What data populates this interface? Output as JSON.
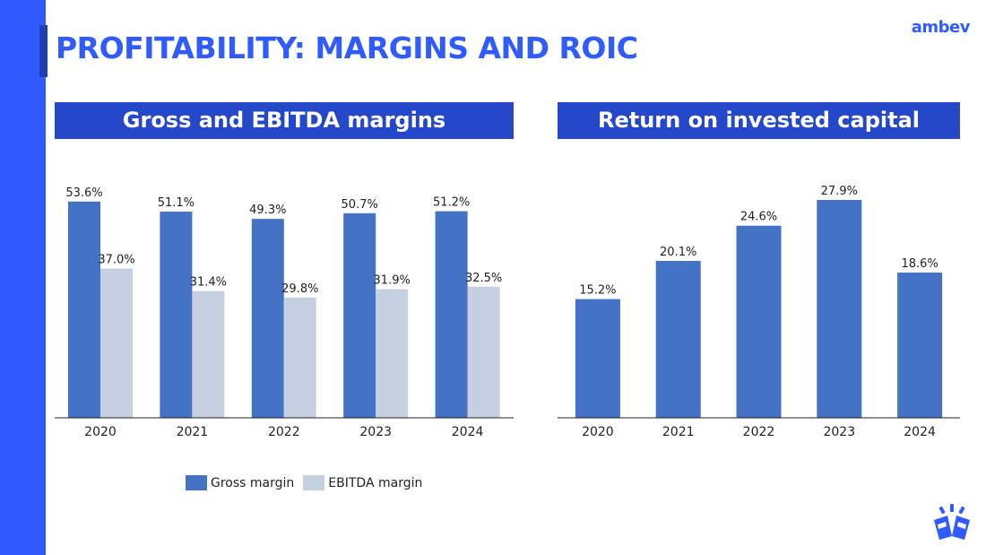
{
  "header": {
    "title": "PROFITABILITY: MARGINS AND ROIC",
    "brand": "ambev"
  },
  "colors": {
    "accent": "#2f5bff",
    "panel_header": "#2448c9",
    "gross_bar": "#4472c4",
    "ebitda_bar": "#c6d0e1",
    "roic_bar": "#4472c4"
  },
  "icons": {
    "logo_mark": "cheers-glasses-icon"
  },
  "chart_data": [
    {
      "type": "bar",
      "title": "Gross and EBITDA margins",
      "categories": [
        "2020",
        "2021",
        "2022",
        "2023",
        "2024"
      ],
      "series": [
        {
          "name": "Gross margin",
          "values": [
            53.6,
            51.1,
            49.3,
            50.7,
            51.2
          ],
          "labels": [
            "53.6%",
            "51.1%",
            "49.3%",
            "50.7%",
            "51.2%"
          ]
        },
        {
          "name": "EBITDA margin",
          "values": [
            37.0,
            31.4,
            29.8,
            31.9,
            32.5
          ],
          "labels": [
            "37.0%",
            "31.4%",
            "29.8%",
            "31.9%",
            "32.5%"
          ]
        }
      ],
      "ylim": [
        0,
        60
      ],
      "xlabel": "",
      "ylabel": "",
      "grid": false,
      "legend": "bottom"
    },
    {
      "type": "bar",
      "title": "Return on invested capital",
      "categories": [
        "2020",
        "2021",
        "2022",
        "2023",
        "2024"
      ],
      "series": [
        {
          "name": "ROIC",
          "values": [
            15.2,
            20.1,
            24.6,
            27.9,
            18.6
          ],
          "labels": [
            "15.2%",
            "20.1%",
            "24.6%",
            "27.9%",
            "18.6%"
          ]
        }
      ],
      "ylim": [
        0,
        31
      ],
      "xlabel": "",
      "ylabel": "",
      "grid": false,
      "legend": "none"
    }
  ]
}
